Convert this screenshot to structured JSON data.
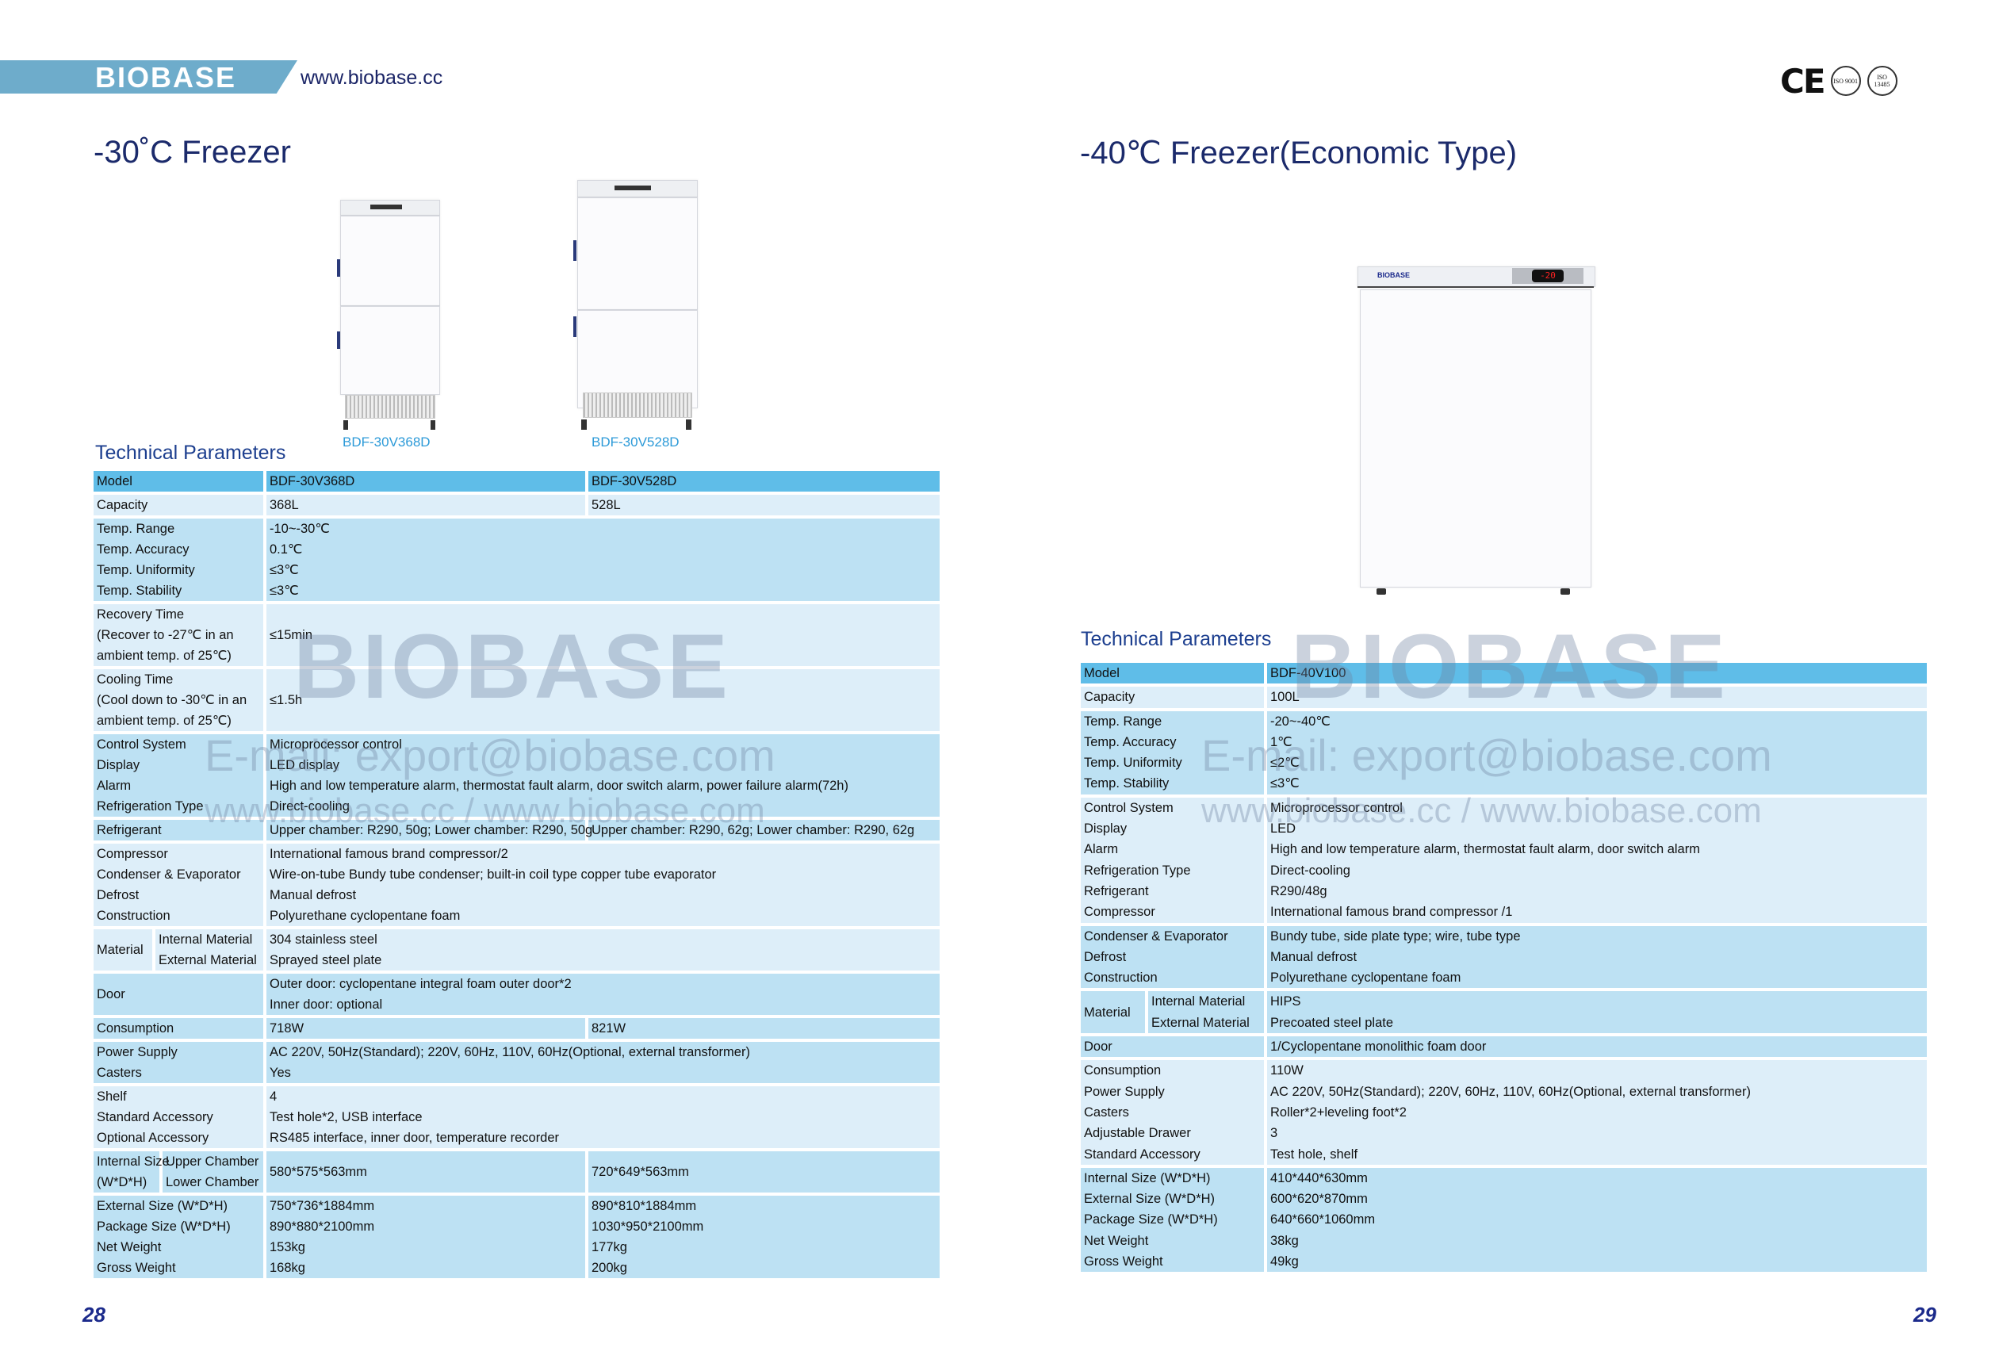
{
  "header": {
    "brand": "BIOBASE",
    "url": "www.biobase.cc",
    "certifications": [
      "CE",
      "ISO 9001",
      "ISO 13485"
    ]
  },
  "watermark": {
    "brand": "BIOBASE",
    "email": "E-mail: export@biobase.com",
    "websites": "www.biobase.cc / www.biobase.com"
  },
  "colors": {
    "header_row": "#5fbde8",
    "medium_row": "#bde1f3",
    "light_row": "#ddeef9",
    "title": "#1b2a6b",
    "model_label": "#2c9ad8"
  },
  "left_page": {
    "title": "-30˚C Freezer",
    "products": [
      "BDF-30V368D",
      "BDF-30V528D"
    ],
    "section_title": "Technical Parameters",
    "page_number": "28",
    "table": [
      {
        "shade": "header",
        "rows": [
          {
            "label": "Model",
            "values": [
              "BDF-30V368D",
              "BDF-30V528D"
            ]
          }
        ]
      },
      {
        "shade": "light",
        "rows": [
          {
            "label": "Capacity",
            "values": [
              "368L",
              "528L"
            ]
          }
        ]
      },
      {
        "shade": "medium",
        "rows": [
          {
            "label": "Temp. Range",
            "value": "-10~-30℃"
          },
          {
            "label": "Temp. Accuracy",
            "value": "0.1℃"
          },
          {
            "label": "Temp. Uniformity",
            "value": "≤3℃"
          },
          {
            "label": "Temp. Stability",
            "value": "≤3℃"
          }
        ]
      },
      {
        "shade": "light",
        "rows": [
          {
            "label": [
              "Recovery Time",
              "(Recover to -27℃ in an",
              "ambient temp. of  25℃)"
            ],
            "value": "≤15min"
          }
        ]
      },
      {
        "shade": "light",
        "rows": [
          {
            "label": [
              "Cooling Time",
              "(Cool down to -30℃ in an",
              "ambient temp. of  25℃)"
            ],
            "value": "≤1.5h"
          }
        ]
      },
      {
        "shade": "medium",
        "rows": [
          {
            "label": "Control System",
            "value": "Microprocessor control"
          },
          {
            "label": "Display",
            "value": "LED display"
          },
          {
            "label": "Alarm",
            "value": "High and low temperature alarm, thermostat fault alarm, door switch alarm, power failure alarm(72h)"
          },
          {
            "label": "Refrigeration Type",
            "value": "Direct-cooling"
          }
        ]
      },
      {
        "shade": "medium",
        "rows": [
          {
            "label": "Refrigerant",
            "values": [
              "Upper chamber: R290, 50g; Lower chamber: R290, 50g",
              "Upper chamber: R290, 62g; Lower chamber: R290, 62g"
            ]
          }
        ]
      },
      {
        "shade": "light",
        "rows": [
          {
            "label": "Compressor",
            "value": "International famous brand compressor/2"
          },
          {
            "label": "Condenser & Evaporator",
            "value": "Wire-on-tube Bundy tube condenser; built-in coil type copper tube evaporator"
          },
          {
            "label": "Defrost",
            "value": "Manual defrost"
          },
          {
            "label": "Construction",
            "value": "Polyurethane cyclopentane foam"
          }
        ]
      },
      {
        "shade": "light",
        "rows": [
          {
            "label": "Material",
            "sub": [
              {
                "label": "Internal Material",
                "value": "304 stainless steel"
              },
              {
                "label": "External Material",
                "value": "Sprayed steel plate"
              }
            ]
          }
        ]
      },
      {
        "shade": "medium",
        "rows": [
          {
            "label": "Door",
            "value": [
              "Outer door: cyclopentane integral foam outer door*2",
              "Inner door: optional"
            ]
          }
        ]
      },
      {
        "shade": "medium",
        "rows": [
          {
            "label": "Consumption",
            "values": [
              "718W",
              "821W"
            ]
          }
        ]
      },
      {
        "shade": "medium",
        "rows": [
          {
            "label": "Power Supply",
            "value": "AC 220V, 50Hz(Standard); 220V, 60Hz, 110V, 60Hz(Optional, external transformer)"
          },
          {
            "label": "Casters",
            "value": "Yes"
          }
        ]
      },
      {
        "shade": "light",
        "rows": [
          {
            "label": "Shelf",
            "value": "4"
          },
          {
            "label": "Standard Accessory",
            "value": "Test hole*2, USB interface"
          },
          {
            "label": "Optional Accessory",
            "value": "RS485 interface, inner door, temperature recorder"
          }
        ]
      },
      {
        "shade": "medium",
        "rows": [
          {
            "label": [
              "Internal Size",
              "(W*D*H)"
            ],
            "sub_labels": [
              "Upper Chamber",
              "Lower Chamber"
            ],
            "values": [
              "580*575*563mm",
              "720*649*563mm"
            ]
          }
        ]
      },
      {
        "shade": "medium",
        "rows": [
          {
            "label": "External Size (W*D*H)",
            "values": [
              "750*736*1884mm",
              "890*810*1884mm"
            ]
          },
          {
            "label": "Package Size (W*D*H)",
            "values": [
              "890*880*2100mm",
              "1030*950*2100mm"
            ]
          },
          {
            "label": "Net Weight",
            "values": [
              "153kg",
              "177kg"
            ]
          },
          {
            "label": "Gross Weight",
            "values": [
              "168kg",
              "200kg"
            ]
          }
        ]
      }
    ]
  },
  "right_page": {
    "title": "-40℃ Freezer(Economic Type)",
    "product_display": "-20",
    "section_title": "Technical Parameters",
    "page_number": "29",
    "table": [
      {
        "shade": "header",
        "rows": [
          {
            "label": "Model",
            "value": "BDF-40V100"
          }
        ]
      },
      {
        "shade": "light",
        "rows": [
          {
            "label": "Capacity",
            "value": "100L"
          }
        ]
      },
      {
        "shade": "medium",
        "rows": [
          {
            "label": "Temp. Range",
            "value": "-20~-40℃"
          },
          {
            "label": "Temp. Accuracy",
            "value": "1℃"
          },
          {
            "label": "Temp. Uniformity",
            "value": "≤2℃"
          },
          {
            "label": "Temp. Stability",
            "value": "≤3℃"
          }
        ]
      },
      {
        "shade": "light",
        "rows": [
          {
            "label": "Control System",
            "value": "Microprocessor control"
          },
          {
            "label": "Display",
            "value": "LED"
          },
          {
            "label": "Alarm",
            "value": "High and low temperature alarm, thermostat fault alarm, door switch alarm"
          },
          {
            "label": "Refrigeration Type",
            "value": "Direct-cooling"
          },
          {
            "label": "Refrigerant",
            "value": "R290/48g"
          },
          {
            "label": "Compressor",
            "value": "International famous brand compressor /1"
          }
        ]
      },
      {
        "shade": "medium",
        "rows": [
          {
            "label": "Condenser & Evaporator",
            "value": "Bundy tube, side plate type; wire, tube type"
          },
          {
            "label": "Defrost",
            "value": "Manual defrost"
          },
          {
            "label": "Construction",
            "value": "Polyurethane cyclopentane foam"
          }
        ]
      },
      {
        "shade": "medium",
        "rows": [
          {
            "label": "Material",
            "sub": [
              {
                "label": "Internal Material",
                "value": "HIPS"
              },
              {
                "label": "External Material",
                "value": "Precoated steel plate"
              }
            ]
          }
        ]
      },
      {
        "shade": "medium",
        "rows": [
          {
            "label": "Door",
            "value": "1/Cyclopentane monolithic foam door"
          }
        ]
      },
      {
        "shade": "light",
        "rows": [
          {
            "label": "Consumption",
            "value": "110W"
          },
          {
            "label": "Power Supply",
            "value": "AC 220V, 50Hz(Standard); 220V, 60Hz, 110V, 60Hz(Optional, external transformer)"
          },
          {
            "label": "Casters",
            "value": "Roller*2+leveling foot*2"
          },
          {
            "label": "Adjustable Drawer",
            "value": "3"
          },
          {
            "label": "Standard Accessory",
            "value": "Test hole, shelf"
          }
        ]
      },
      {
        "shade": "medium",
        "rows": [
          {
            "label": "Internal Size (W*D*H)",
            "value": "410*440*630mm"
          },
          {
            "label": "External Size (W*D*H)",
            "value": "600*620*870mm"
          },
          {
            "label": "Package Size (W*D*H)",
            "value": "640*660*1060mm"
          },
          {
            "label": "Net Weight",
            "value": "38kg"
          },
          {
            "label": "Gross Weight",
            "value": "49kg"
          }
        ]
      }
    ]
  }
}
